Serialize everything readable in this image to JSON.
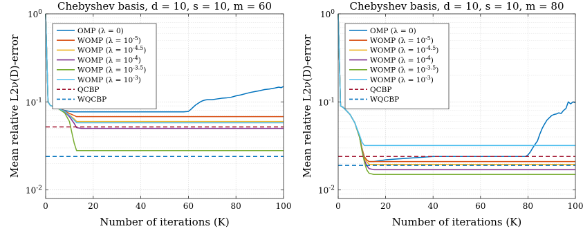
{
  "chart_data": [
    {
      "type": "line",
      "title": "Chebyshev basis, d = 10, s = 10, m = 60",
      "xlabel": "Number of iterations (K)",
      "ylabel": "Mean relative L2ν(D)-error",
      "xlim": [
        0,
        100
      ],
      "ylim": [
        0.008,
        1
      ],
      "yscale": "log",
      "xticks": [
        "0",
        "20",
        "40",
        "60",
        "80",
        "100"
      ],
      "yticks": [
        "10^-2",
        "10^-1",
        "10^0"
      ],
      "grid": true,
      "legend_position": "top-left",
      "series": [
        {
          "name": "OMP (λ = 0)",
          "color": "#0072BD",
          "dash": "solid",
          "x": [
            0,
            1,
            2,
            3,
            5,
            8,
            10,
            12,
            15,
            20,
            30,
            40,
            50,
            58,
            60,
            61,
            62,
            63,
            64,
            65,
            66,
            67,
            68,
            70,
            72,
            74,
            76,
            78,
            80,
            82,
            84,
            86,
            88,
            90,
            92,
            94,
            96,
            98,
            99,
            100
          ],
          "y": [
            1,
            0.1,
            0.091,
            0.089,
            0.085,
            0.08,
            0.078,
            0.077,
            0.077,
            0.077,
            0.077,
            0.077,
            0.077,
            0.077,
            0.078,
            0.082,
            0.087,
            0.092,
            0.096,
            0.1,
            0.103,
            0.105,
            0.106,
            0.106,
            0.108,
            0.11,
            0.111,
            0.113,
            0.117,
            0.12,
            0.124,
            0.128,
            0.131,
            0.134,
            0.138,
            0.14,
            0.143,
            0.147,
            0.145,
            0.15
          ]
        },
        {
          "name": "WOMP (λ = 10^-5)",
          "color": "#D95319",
          "dash": "solid",
          "x": [
            0,
            1,
            2,
            3,
            5,
            8,
            10,
            12,
            13,
            15,
            20,
            40,
            60,
            80,
            100
          ],
          "y": [
            1,
            0.1,
            0.091,
            0.089,
            0.085,
            0.079,
            0.074,
            0.07,
            0.068,
            0.068,
            0.068,
            0.068,
            0.068,
            0.068,
            0.068
          ]
        },
        {
          "name": "WOMP (λ = 10^-4.5)",
          "color": "#EDB120",
          "dash": "solid",
          "x": [
            0,
            1,
            2,
            3,
            5,
            8,
            10,
            12,
            13,
            15,
            20,
            40,
            60,
            80,
            100
          ],
          "y": [
            1,
            0.1,
            0.091,
            0.089,
            0.085,
            0.078,
            0.071,
            0.064,
            0.06,
            0.06,
            0.06,
            0.06,
            0.06,
            0.06,
            0.06
          ]
        },
        {
          "name": "WOMP (λ = 10^-4)",
          "color": "#7E2F8E",
          "dash": "solid",
          "x": [
            0,
            1,
            2,
            3,
            5,
            8,
            10,
            12,
            13,
            15,
            20,
            40,
            60,
            80,
            100
          ],
          "y": [
            1,
            0.1,
            0.091,
            0.089,
            0.085,
            0.077,
            0.068,
            0.057,
            0.051,
            0.05,
            0.05,
            0.05,
            0.05,
            0.05,
            0.05
          ]
        },
        {
          "name": "WOMP (λ = 10^-3.5)",
          "color": "#77AC30",
          "dash": "solid",
          "x": [
            0,
            1,
            2,
            3,
            5,
            8,
            10,
            11,
            12,
            13,
            15,
            20,
            40,
            60,
            80,
            100
          ],
          "y": [
            1,
            0.1,
            0.091,
            0.089,
            0.085,
            0.075,
            0.06,
            0.045,
            0.034,
            0.028,
            0.028,
            0.028,
            0.028,
            0.028,
            0.028,
            0.028
          ]
        },
        {
          "name": "WOMP (λ = 10^-3)",
          "color": "#4DBEEE",
          "dash": "solid",
          "x": [
            0,
            1,
            2,
            3,
            5,
            8,
            10,
            12,
            13,
            15,
            20,
            40,
            60,
            80,
            100
          ],
          "y": [
            1,
            0.1,
            0.091,
            0.089,
            0.085,
            0.078,
            0.07,
            0.062,
            0.058,
            0.058,
            0.058,
            0.058,
            0.058,
            0.058,
            0.058
          ]
        },
        {
          "name": "QCBP",
          "color": "#A2142F",
          "dash": "dashed",
          "x": [
            0,
            100
          ],
          "y": [
            0.052,
            0.052
          ]
        },
        {
          "name": "WQCBP",
          "color": "#0072BD",
          "dash": "dashed",
          "x": [
            0,
            100
          ],
          "y": [
            0.024,
            0.024
          ]
        }
      ]
    },
    {
      "type": "line",
      "title": "Chebyshev basis, d = 10, s = 10, m = 80",
      "xlabel": "Number of iterations (K)",
      "ylabel": "Mean relative L2ν(D)-error",
      "xlim": [
        0,
        100
      ],
      "ylim": [
        0.008,
        1
      ],
      "yscale": "log",
      "xticks": [
        "0",
        "20",
        "40",
        "60",
        "80",
        "100"
      ],
      "yticks": [
        "10^-2",
        "10^-1",
        "10^0"
      ],
      "grid": true,
      "legend_position": "top-left",
      "series": [
        {
          "name": "OMP (λ = 0)",
          "color": "#0072BD",
          "dash": "solid",
          "x": [
            0,
            1,
            2,
            3,
            5,
            7,
            9,
            10,
            11,
            12,
            13,
            15,
            20,
            30,
            40,
            50,
            60,
            70,
            78,
            79,
            80,
            81,
            82,
            83,
            84,
            85,
            86,
            87,
            88,
            89,
            90,
            91,
            92,
            93,
            94,
            95,
            96,
            97,
            98,
            99,
            100
          ],
          "y": [
            1,
            0.09,
            0.087,
            0.082,
            0.072,
            0.058,
            0.04,
            0.03,
            0.024,
            0.022,
            0.021,
            0.021,
            0.022,
            0.023,
            0.024,
            0.024,
            0.024,
            0.024,
            0.024,
            0.024,
            0.025,
            0.027,
            0.03,
            0.033,
            0.036,
            0.043,
            0.05,
            0.056,
            0.062,
            0.066,
            0.07,
            0.072,
            0.073,
            0.075,
            0.074,
            0.08,
            0.084,
            0.1,
            0.095,
            0.1,
            0.098
          ]
        },
        {
          "name": "WOMP (λ = 10^-5)",
          "color": "#D95319",
          "dash": "solid",
          "x": [
            0,
            1,
            2,
            3,
            5,
            7,
            9,
            10,
            11,
            12,
            13,
            15,
            20,
            40,
            60,
            80,
            100
          ],
          "y": [
            1,
            0.09,
            0.087,
            0.082,
            0.072,
            0.058,
            0.04,
            0.03,
            0.024,
            0.022,
            0.021,
            0.021,
            0.021,
            0.021,
            0.021,
            0.021,
            0.021
          ]
        },
        {
          "name": "WOMP (λ = 10^-4.5)",
          "color": "#EDB120",
          "dash": "solid",
          "x": [
            0,
            1,
            2,
            3,
            5,
            7,
            9,
            10,
            11,
            12,
            13,
            15,
            20,
            40,
            60,
            80,
            100
          ],
          "y": [
            1,
            0.09,
            0.087,
            0.082,
            0.072,
            0.058,
            0.04,
            0.03,
            0.023,
            0.021,
            0.0195,
            0.0195,
            0.0195,
            0.0195,
            0.0195,
            0.0195,
            0.0195
          ]
        },
        {
          "name": "WOMP (λ = 10^-4)",
          "color": "#7E2F8E",
          "dash": "solid",
          "x": [
            0,
            1,
            2,
            3,
            5,
            7,
            9,
            10,
            11,
            12,
            13,
            15,
            20,
            40,
            60,
            80,
            100
          ],
          "y": [
            1,
            0.09,
            0.087,
            0.082,
            0.072,
            0.058,
            0.04,
            0.029,
            0.022,
            0.019,
            0.0175,
            0.017,
            0.017,
            0.017,
            0.017,
            0.017,
            0.017
          ]
        },
        {
          "name": "WOMP (λ = 10^-3.5)",
          "color": "#77AC30",
          "dash": "solid",
          "x": [
            0,
            1,
            2,
            3,
            5,
            7,
            9,
            10,
            11,
            12,
            13,
            15,
            20,
            40,
            60,
            80,
            100
          ],
          "y": [
            1,
            0.09,
            0.087,
            0.082,
            0.072,
            0.058,
            0.04,
            0.028,
            0.021,
            0.017,
            0.0155,
            0.015,
            0.015,
            0.015,
            0.015,
            0.015,
            0.015
          ]
        },
        {
          "name": "WOMP (λ = 10^-3)",
          "color": "#4DBEEE",
          "dash": "solid",
          "x": [
            0,
            1,
            2,
            3,
            5,
            7,
            9,
            10,
            11,
            12,
            13,
            15,
            20,
            40,
            60,
            80,
            100
          ],
          "y": [
            1,
            0.09,
            0.087,
            0.082,
            0.072,
            0.058,
            0.042,
            0.035,
            0.032,
            0.032,
            0.032,
            0.032,
            0.032,
            0.032,
            0.032,
            0.032,
            0.032
          ]
        },
        {
          "name": "QCBP",
          "color": "#A2142F",
          "dash": "dashed",
          "x": [
            0,
            100
          ],
          "y": [
            0.024,
            0.024
          ]
        },
        {
          "name": "WQCBP",
          "color": "#0072BD",
          "dash": "dashed",
          "x": [
            0,
            100
          ],
          "y": [
            0.019,
            0.019
          ]
        }
      ]
    }
  ]
}
